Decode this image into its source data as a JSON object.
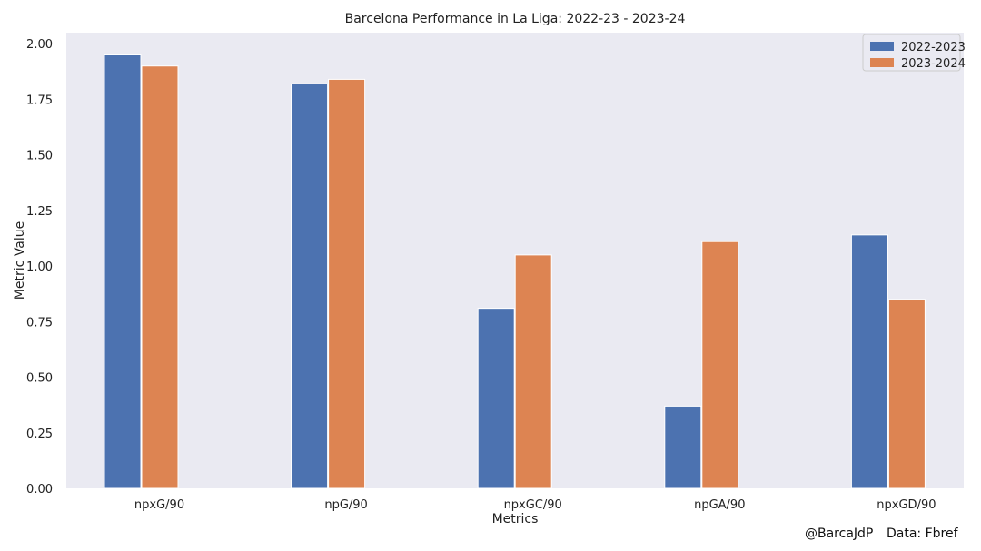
{
  "chart_data": {
    "type": "bar",
    "title": "Barcelona Performance in La Liga: 2022-23 - 2023-24",
    "xlabel": "Metrics",
    "ylabel": "Metric Value",
    "categories": [
      "npxG/90",
      "npG/90",
      "npxGC/90",
      "npGA/90",
      "npxGD/90"
    ],
    "series": [
      {
        "name": "2022-2023",
        "color": "#4c72b0",
        "values": [
          1.95,
          1.82,
          0.81,
          0.37,
          1.14
        ]
      },
      {
        "name": "2023-2024",
        "color": "#dd8452",
        "values": [
          1.9,
          1.84,
          1.05,
          1.11,
          0.85
        ]
      }
    ],
    "ylim": [
      0,
      2.05
    ],
    "yticks": [
      "0.00",
      "0.25",
      "0.50",
      "0.75",
      "1.00",
      "1.25",
      "1.50",
      "1.75",
      "2.00"
    ],
    "grid": false,
    "legend_position": "top-right",
    "plot_background": "#eaeaf2"
  },
  "footer": {
    "handle": "@BarcaJdP",
    "source": "Data: Fbref"
  }
}
